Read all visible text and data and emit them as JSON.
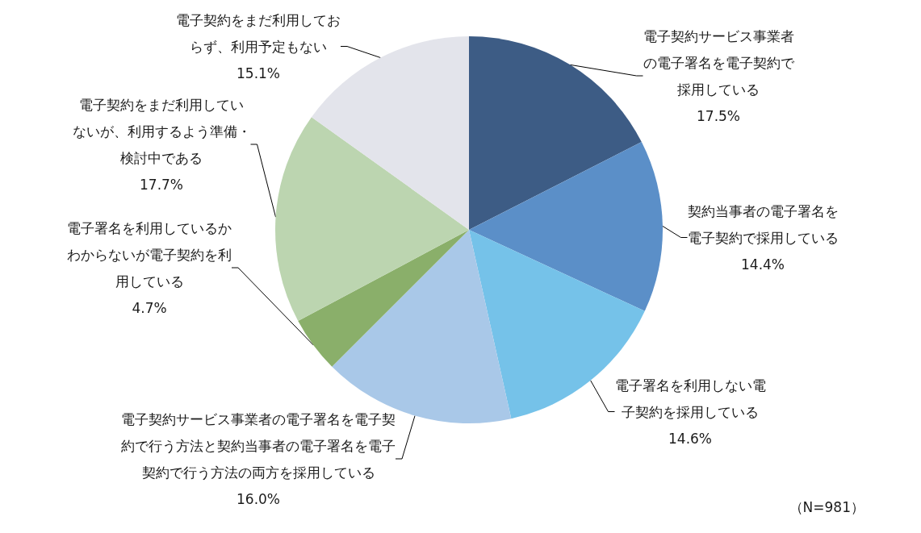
{
  "chart_data": {
    "type": "pie",
    "categories": [
      "電子契約サービス事業者の電子署名を電子契約で採用している",
      "契約当事者の電子署名を電子契約で採用している",
      "電子署名を利用しない電子契約を採用している",
      "電子契約サービス事業者の電子署名を電子契約で行う方法と契約当事者の電子署名を電子契約で行う方法の両方を採用している",
      "電子署名を利用しているかわからないが電子契約を利用している",
      "電子契約をまだ利用していないが、利用するよう準備・検討中である",
      "電子契約をまだ利用しておらず、利用予定もない"
    ],
    "values": [
      17.5,
      14.4,
      14.6,
      16.0,
      4.7,
      17.7,
      15.1
    ],
    "colors": [
      "#3d5c85",
      "#5b8fc8",
      "#75c2e9",
      "#a9c8e8",
      "#8aaf6a",
      "#bcd5b0",
      "#e3e4eb"
    ],
    "value_labels": [
      "17.5%",
      "14.4%",
      "14.6%",
      "16.0%",
      "4.7%",
      "17.7%",
      "15.1%"
    ],
    "annotations": [
      "（N=981）"
    ]
  }
}
